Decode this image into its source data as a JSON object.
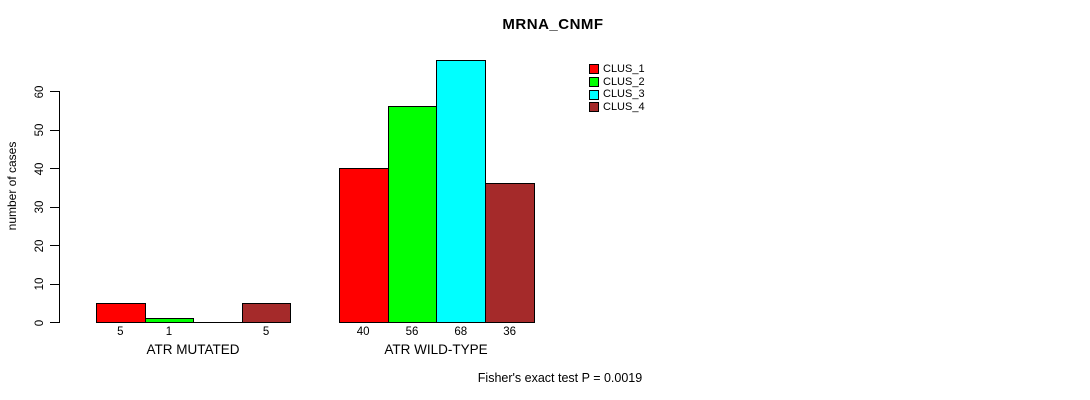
{
  "title": "MRNA_CNMF",
  "footer": "Fisher's exact test P = 0.0019",
  "legend": [
    {
      "label": "CLUS_1",
      "color": "#FF0000"
    },
    {
      "label": "CLUS_2",
      "color": "#00FF00"
    },
    {
      "label": "CLUS_3",
      "color": "#00FFFF"
    },
    {
      "label": "CLUS_4",
      "color": "#A52A2A"
    }
  ],
  "chart_data": {
    "type": "bar",
    "title": "MRNA_CNMF",
    "xlabel": "",
    "ylabel": "number of cases",
    "ylim": [
      0,
      70
    ],
    "yticks": [
      0,
      10,
      20,
      30,
      40,
      50,
      60
    ],
    "grid": false,
    "legend_position": "top-right",
    "series": [
      {
        "name": "CLUS_1",
        "color": "#FF0000",
        "values": [
          5,
          40
        ]
      },
      {
        "name": "CLUS_2",
        "color": "#00FF00",
        "values": [
          1,
          56
        ]
      },
      {
        "name": "CLUS_3",
        "color": "#00FFFF",
        "values": [
          0,
          68
        ]
      },
      {
        "name": "CLUS_4",
        "color": "#A52A2A",
        "values": [
          5,
          36
        ]
      }
    ],
    "groups": [
      {
        "label": "ATR MUTATED",
        "values": [
          5,
          1,
          0,
          5
        ],
        "bar_labels": [
          "5",
          "1",
          "",
          "5"
        ]
      },
      {
        "label": "ATR WILD-TYPE",
        "values": [
          40,
          56,
          68,
          36
        ],
        "bar_labels": [
          "40",
          "56",
          "68",
          "36"
        ]
      }
    ],
    "annotation": "Fisher's exact test P = 0.0019"
  }
}
